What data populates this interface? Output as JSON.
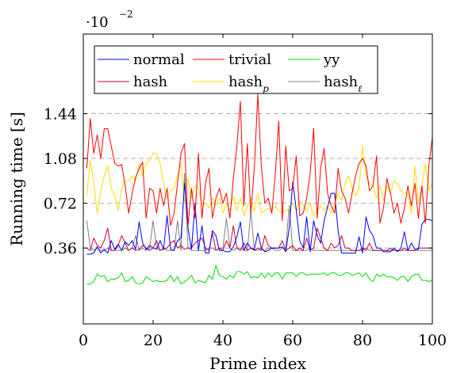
{
  "chart_data": {
    "type": "line",
    "xlabel": "Prime index",
    "ylabel": "Running time [s]",
    "scale_label": "·10",
    "scale_exponent": "−2",
    "xlim": [
      0,
      100
    ],
    "ylim": [
      -0.0025,
      0.0208
    ],
    "xticks": [
      0,
      20,
      40,
      60,
      80,
      100
    ],
    "yticks": [
      0.0036,
      0.0072,
      0.0108,
      0.0144
    ],
    "ytick_labels": [
      "0.36",
      "0.72",
      "1.08",
      "1.44"
    ],
    "grid": "horizontal-dashed",
    "legend_position": "top",
    "series": [
      {
        "name": "normal",
        "color": "#0000ff",
        "values": [
          0.0031,
          0.0031,
          0.0032,
          0.0037,
          0.0032,
          0.0035,
          0.0032,
          0.0042,
          0.0035,
          0.0039,
          0.0034,
          0.0041,
          0.0038,
          0.0042,
          0.0035,
          0.0057,
          0.004,
          0.0035,
          0.0038,
          0.0036,
          0.0035,
          0.0042,
          0.0035,
          0.0062,
          0.0035,
          0.0034,
          0.0042,
          0.0044,
          0.0088,
          0.0052,
          0.0035,
          0.0072,
          0.0034,
          0.0054,
          0.0032,
          0.0032,
          0.005,
          0.0046,
          0.0034,
          0.0034,
          0.0033,
          0.0033,
          0.0037,
          0.0045,
          0.0057,
          0.0034,
          0.004,
          0.0036,
          0.0035,
          0.0048,
          0.0036,
          0.0033,
          0.0034,
          0.0036,
          0.0036,
          0.0036,
          0.0037,
          0.0033,
          0.0052,
          0.0089,
          0.0067,
          0.0042,
          0.0036,
          0.0061,
          0.0033,
          0.0058,
          0.0046,
          0.004,
          0.0058,
          0.0069,
          0.008,
          0.008,
          0.005,
          0.0032,
          0.0032,
          0.0032,
          0.0032,
          0.0032,
          0.0045,
          0.0032,
          0.0061,
          0.005,
          0.0046,
          0.0036,
          0.0036,
          0.0033,
          0.0033,
          0.0033,
          0.0036,
          0.0033,
          0.0036,
          0.0049,
          0.0034,
          0.004,
          0.0035,
          0.0035,
          0.0055,
          0.0059,
          0.0059,
          0.0058
        ]
      },
      {
        "name": "trivial",
        "color": "#ff0000",
        "values": [
          0.01,
          0.014,
          0.0112,
          0.0127,
          0.0108,
          0.0132,
          0.0132,
          0.0118,
          0.0104,
          0.0102,
          0.0103,
          0.0086,
          0.0064,
          0.008,
          0.0093,
          0.01,
          0.0105,
          0.006,
          0.0084,
          0.0082,
          0.0064,
          0.0084,
          0.007,
          0.0084,
          0.0054,
          0.0064,
          0.0088,
          0.0112,
          0.012,
          0.0054,
          0.0084,
          0.006,
          0.0112,
          0.006,
          0.0088,
          0.01,
          0.006,
          0.0076,
          0.0084,
          0.0072,
          0.008,
          0.006,
          0.0092,
          0.0118,
          0.0154,
          0.007,
          0.012,
          0.0064,
          0.01,
          0.016,
          0.0102,
          0.0072,
          0.0076,
          0.0064,
          0.0095,
          0.0138,
          0.0058,
          0.0118,
          0.0082,
          0.0084,
          0.011,
          0.0062,
          0.0064,
          0.0076,
          0.0096,
          0.0132,
          0.006,
          0.01,
          0.0116,
          0.008,
          0.007,
          0.0064,
          0.01,
          0.0082,
          0.0076,
          0.0064,
          0.008,
          0.0094,
          0.0104,
          0.0108,
          0.0102,
          0.0082,
          0.0086,
          0.011,
          0.0056,
          0.0068,
          0.0092,
          0.008,
          0.0064,
          0.0072,
          0.0056,
          0.0068,
          0.0086,
          0.007,
          0.0088,
          0.006,
          0.0086,
          0.0056,
          0.0102,
          0.0125
        ]
      },
      {
        "name": "yy",
        "color": "#00dd00",
        "values": [
          0.0007,
          0.0007,
          0.0009,
          0.0015,
          0.0013,
          0.0014,
          0.0009,
          0.0011,
          0.0011,
          0.0012,
          0.0016,
          0.0009,
          0.001,
          0.0013,
          0.0008,
          0.0007,
          0.0008,
          0.0013,
          0.0011,
          0.0009,
          0.001,
          0.0009,
          0.0009,
          0.001,
          0.0014,
          0.0009,
          0.0013,
          0.0007,
          0.0009,
          0.0011,
          0.0014,
          0.0008,
          0.001,
          0.0009,
          0.0008,
          0.0014,
          0.0011,
          0.0022,
          0.0014,
          0.0013,
          0.0011,
          0.0014,
          0.0012,
          0.0017,
          0.0017,
          0.0015,
          0.0017,
          0.0012,
          0.0013,
          0.0012,
          0.0016,
          0.0012,
          0.0016,
          0.0013,
          0.0016,
          0.0016,
          0.0011,
          0.0016,
          0.0016,
          0.0016,
          0.0013,
          0.0016,
          0.0016,
          0.0014,
          0.0015,
          0.0015,
          0.0015,
          0.0015,
          0.0016,
          0.0014,
          0.0016,
          0.0016,
          0.0014,
          0.0014,
          0.0016,
          0.0016,
          0.0014,
          0.0015,
          0.0016,
          0.0013,
          0.0016,
          0.0011,
          0.0009,
          0.0015,
          0.0013,
          0.0015,
          0.0013,
          0.0013,
          0.0012,
          0.001,
          0.0013,
          0.0013,
          0.0009,
          0.0013,
          0.0015,
          0.0015,
          0.001,
          0.001,
          0.0009,
          0.001
        ]
      },
      {
        "name": "hash",
        "color": "#cc0033",
        "values": [
          0.0036,
          0.0034,
          0.0044,
          0.0038,
          0.0036,
          0.0042,
          0.0052,
          0.0034,
          0.0034,
          0.0038,
          0.0046,
          0.004,
          0.0034,
          0.0036,
          0.0034,
          0.0035,
          0.0038,
          0.0036,
          0.0034,
          0.0036,
          0.0042,
          0.0034,
          0.0035,
          0.0036,
          0.004,
          0.0042,
          0.0036,
          0.0038,
          0.0035,
          0.0036,
          0.0036,
          0.004,
          0.0042,
          0.0044,
          0.0036,
          0.0034,
          0.0048,
          0.0034,
          0.0036,
          0.0034,
          0.0042,
          0.0036,
          0.0054,
          0.0036,
          0.0034,
          0.004,
          0.0034,
          0.0036,
          0.0034,
          0.0036,
          0.0034,
          0.0046,
          0.0038,
          0.0036,
          0.0036,
          0.0036,
          0.0042,
          0.0034,
          0.0036,
          0.0038,
          0.0034,
          0.0036,
          0.0034,
          0.0044,
          0.0034,
          0.0036,
          0.0052,
          0.0044,
          0.0036,
          0.0034,
          0.004,
          0.0036,
          0.0038,
          0.0046,
          0.0036,
          0.0036,
          0.0034,
          0.0034,
          0.0034,
          0.0036,
          0.0034,
          0.004,
          0.0034,
          0.0034,
          0.0034,
          0.0034,
          0.0034,
          0.0036,
          0.0034,
          0.0034,
          0.0034,
          0.0036,
          0.0034,
          0.0034,
          0.0034,
          0.0036,
          0.0036,
          0.0036,
          0.0036,
          0.0036
        ]
      },
      {
        "name": "hash<sub>p</sub>",
        "color": "#ffdd00",
        "values": [
          0.0078,
          0.0106,
          0.0088,
          0.0064,
          0.0082,
          0.0094,
          0.0102,
          0.0084,
          0.0078,
          0.0066,
          0.0084,
          0.009,
          0.009,
          0.0094,
          0.009,
          0.0104,
          0.0094,
          0.0104,
          0.0106,
          0.0112,
          0.0112,
          0.0104,
          0.0088,
          0.0076,
          0.0082,
          0.0084,
          0.0094,
          0.0104,
          0.0072,
          0.0092,
          0.0076,
          0.0086,
          0.0084,
          0.007,
          0.0072,
          0.0068,
          0.0076,
          0.007,
          0.0076,
          0.0064,
          0.0072,
          0.0066,
          0.0078,
          0.0066,
          0.0076,
          0.0062,
          0.007,
          0.0076,
          0.0066,
          0.008,
          0.0064,
          0.0066,
          0.0068,
          0.0066,
          0.007,
          0.0066,
          0.0064,
          0.0066,
          0.0068,
          0.0072,
          0.0066,
          0.0074,
          0.007,
          0.0066,
          0.0072,
          0.0062,
          0.0066,
          0.007,
          0.0066,
          0.007,
          0.0064,
          0.0072,
          0.008,
          0.0074,
          0.0088,
          0.0094,
          0.0084,
          0.0078,
          0.0084,
          0.0118,
          0.0094,
          0.0088,
          0.0086,
          0.0076,
          0.0086,
          0.0074,
          0.0086,
          0.008,
          0.009,
          0.0088,
          0.0082,
          0.008,
          0.008,
          0.0064,
          0.0102,
          0.0072,
          0.0086,
          0.0104,
          0.0082,
          0.0088
        ]
      },
      {
        "name": "hash<sub>ℓ</sub>",
        "color": "#808080",
        "values": [
          0.0058,
          0.0036,
          0.0034,
          0.0036,
          0.0034,
          0.0034,
          0.0036,
          0.0034,
          0.0034,
          0.0034,
          0.0034,
          0.0036,
          0.0034,
          0.0036,
          0.0046,
          0.0034,
          0.0036,
          0.0034,
          0.0036,
          0.0058,
          0.0036,
          0.0034,
          0.0036,
          0.0034,
          0.0034,
          0.0034,
          0.0058,
          0.0034,
          0.0096,
          0.0036,
          0.0034,
          0.0034,
          0.0034,
          0.0034,
          0.0034,
          0.0036,
          0.0036,
          0.0034,
          0.0036,
          0.0036,
          0.006,
          0.0036,
          0.0034,
          0.0036,
          0.0036,
          0.0034,
          0.0034,
          0.0066,
          0.0034,
          0.0034,
          0.0036,
          0.0034,
          0.0036,
          0.0036,
          0.0034,
          0.0034,
          0.0036,
          0.0036,
          0.007,
          0.0034,
          0.0034,
          0.0034,
          0.0034,
          0.0034,
          0.0036,
          0.0034,
          0.0034,
          0.0034,
          0.0034,
          0.0034,
          0.0034,
          0.0034,
          0.0034,
          0.0034,
          0.0034,
          0.0034,
          0.0034,
          0.0034,
          0.0034,
          0.0034,
          0.0036,
          0.0034,
          0.0034,
          0.0034,
          0.0034,
          0.0034,
          0.0034,
          0.0034,
          0.0034,
          0.0034,
          0.0034,
          0.0034,
          0.0034,
          0.0034,
          0.0034,
          0.0034,
          0.0034,
          0.0034,
          0.0034,
          0.0034
        ]
      }
    ]
  }
}
